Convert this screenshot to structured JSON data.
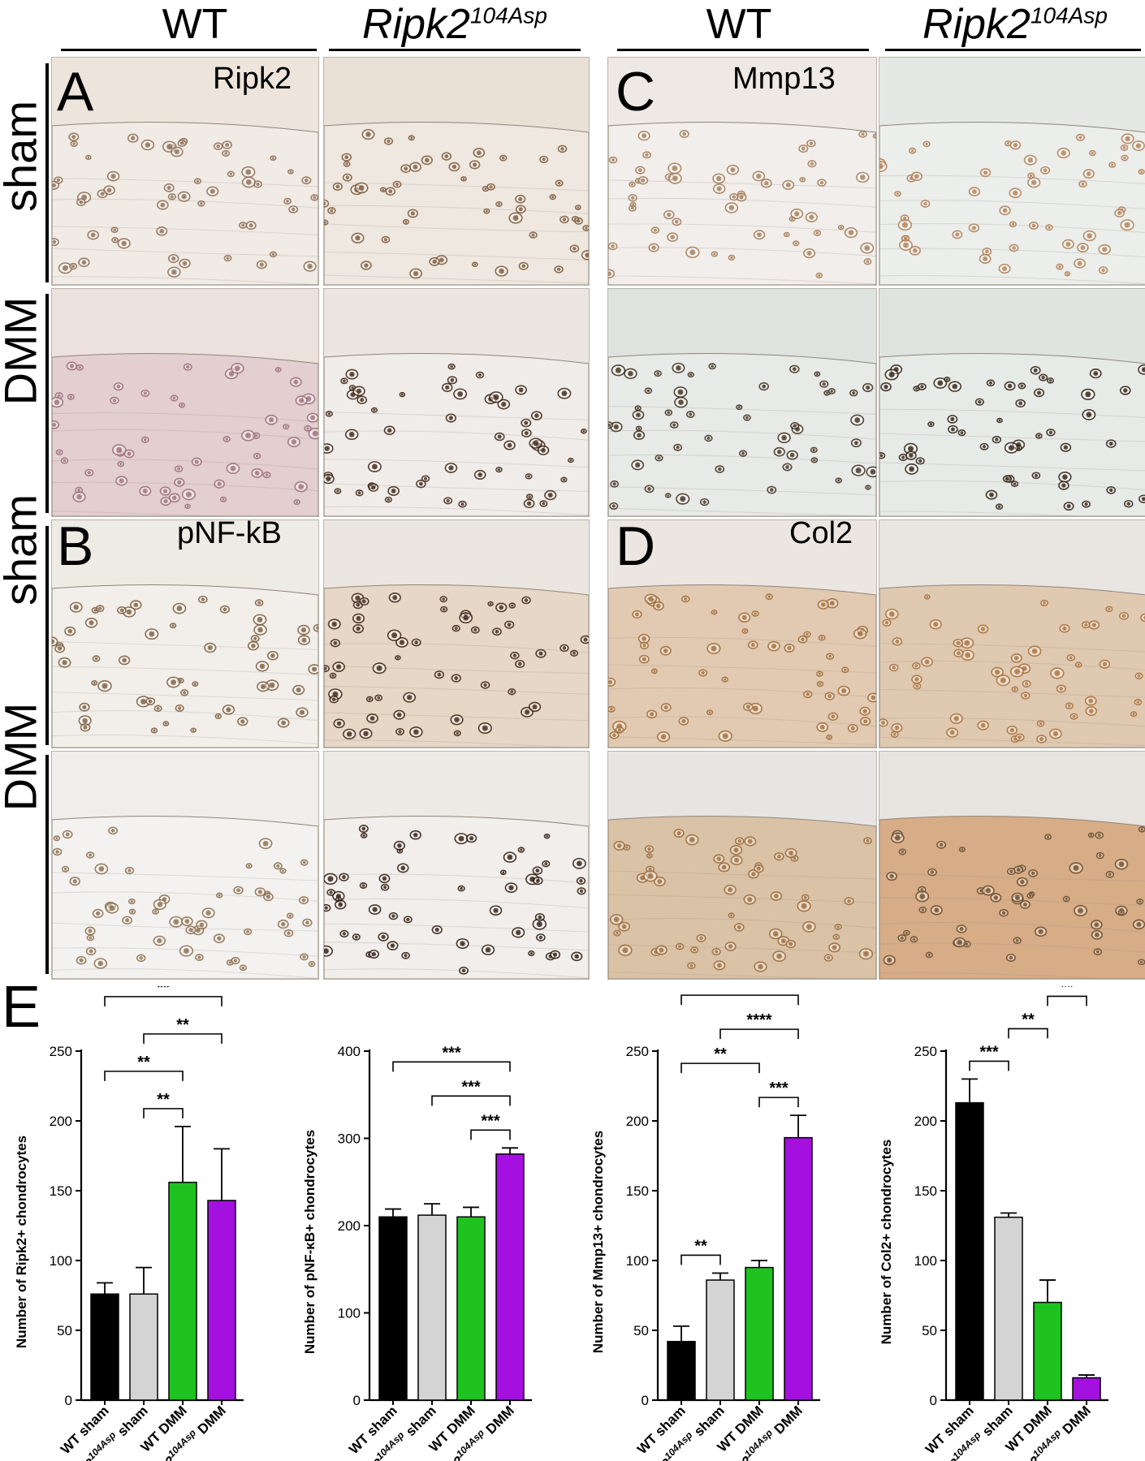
{
  "columns": {
    "wt": "WT",
    "mut_base": "Ripk2",
    "mut_sup": "104Asp"
  },
  "rows": {
    "sham": "sham",
    "dmm": "DMM"
  },
  "panel_letters": {
    "a": "A",
    "b": "B",
    "c": "C",
    "d": "D",
    "e": "E"
  },
  "stains": {
    "a": "Ripk2",
    "b": "pNF-kB",
    "c": "Mmp13",
    "d": "Col2"
  },
  "colors": {
    "wt_sham": "#000000",
    "mut_sham": "#d4d4d4",
    "wt_dmm": "#1fc31f",
    "mut_dmm": "#a410e0"
  },
  "chart_data": [
    {
      "type": "bar",
      "ylabel": "Number of Ripk2+ chondrocytes",
      "ylim": [
        0,
        250
      ],
      "yticks": [
        0,
        50,
        100,
        150,
        200,
        250
      ],
      "categories": [
        "WT sham",
        "Ripk2104Asp sham",
        "WT DMM",
        "Ripk2104Asp DMM"
      ],
      "values": [
        76,
        76,
        156,
        143
      ],
      "errors": [
        8,
        19,
        40,
        37
      ],
      "significance": [
        {
          "from": 1,
          "to": 2,
          "label": "**"
        },
        {
          "from": 0,
          "to": 2,
          "label": "**"
        },
        {
          "from": 1,
          "to": 3,
          "label": "**"
        },
        {
          "from": 0,
          "to": 3,
          "label": "**"
        }
      ]
    },
    {
      "type": "bar",
      "ylabel": "Number of pNF-κB+ chondrocytes",
      "ylim": [
        0,
        400
      ],
      "yticks": [
        0,
        100,
        200,
        300,
        400
      ],
      "categories": [
        "WT sham",
        "Ripk2104Asp sham",
        "WT DMM",
        "Ripk2104Asp DMM"
      ],
      "values": [
        210,
        212,
        210,
        282
      ],
      "errors": [
        9,
        13,
        11,
        7
      ],
      "significance": [
        {
          "from": 2,
          "to": 3,
          "label": "***"
        },
        {
          "from": 1,
          "to": 3,
          "label": "***"
        },
        {
          "from": 0,
          "to": 3,
          "label": "***"
        }
      ]
    },
    {
      "type": "bar",
      "ylabel": "Number of Mmp13+ chondrocytes",
      "ylim": [
        0,
        250
      ],
      "yticks": [
        0,
        50,
        100,
        150,
        200,
        250
      ],
      "categories": [
        "WT sham",
        "Ripk2104Asp sham",
        "WT DMM",
        "Ripk2104Asp DMM"
      ],
      "values": [
        42,
        86,
        95,
        188
      ],
      "errors": [
        11,
        5,
        5,
        16
      ],
      "significance": [
        {
          "from": 0,
          "to": 1,
          "label": "**"
        },
        {
          "from": 2,
          "to": 3,
          "label": "***"
        },
        {
          "from": 0,
          "to": 2,
          "label": "**"
        },
        {
          "from": 1,
          "to": 3,
          "label": "****"
        },
        {
          "from": 0,
          "to": 3,
          "label": "****"
        }
      ]
    },
    {
      "type": "bar",
      "ylabel": "Number of Col2+ chondrocytes",
      "ylim": [
        0,
        250
      ],
      "yticks": [
        0,
        50,
        100,
        150,
        200,
        250
      ],
      "categories": [
        "WT sham",
        "Ripk2104Asp sham",
        "WT DMM",
        "Ripk2104Asp DMM"
      ],
      "values": [
        213,
        131,
        70,
        16
      ],
      "errors": [
        17,
        3,
        16,
        2
      ],
      "significance": [
        {
          "from": 0,
          "to": 1,
          "label": "***"
        },
        {
          "from": 1,
          "to": 2,
          "label": "**"
        },
        {
          "from": 2,
          "to": 3,
          "label": "**"
        },
        {
          "from": 0,
          "to": 2,
          "label": "****"
        },
        {
          "from": 1,
          "to": 3,
          "label": "***"
        },
        {
          "from": 0,
          "to": 3,
          "label": "****"
        }
      ]
    }
  ],
  "tick_labels": {
    "wt_sham": "WT sham",
    "mut_sham_base": "Ripk2",
    "mut_sham_sup": "104Asp",
    "mut_sham_tail": " sham",
    "wt_dmm": "WT DMM",
    "mut_dmm_base": "Ripk2",
    "mut_dmm_sup": "104Asp",
    "mut_dmm_tail": " DMM"
  }
}
